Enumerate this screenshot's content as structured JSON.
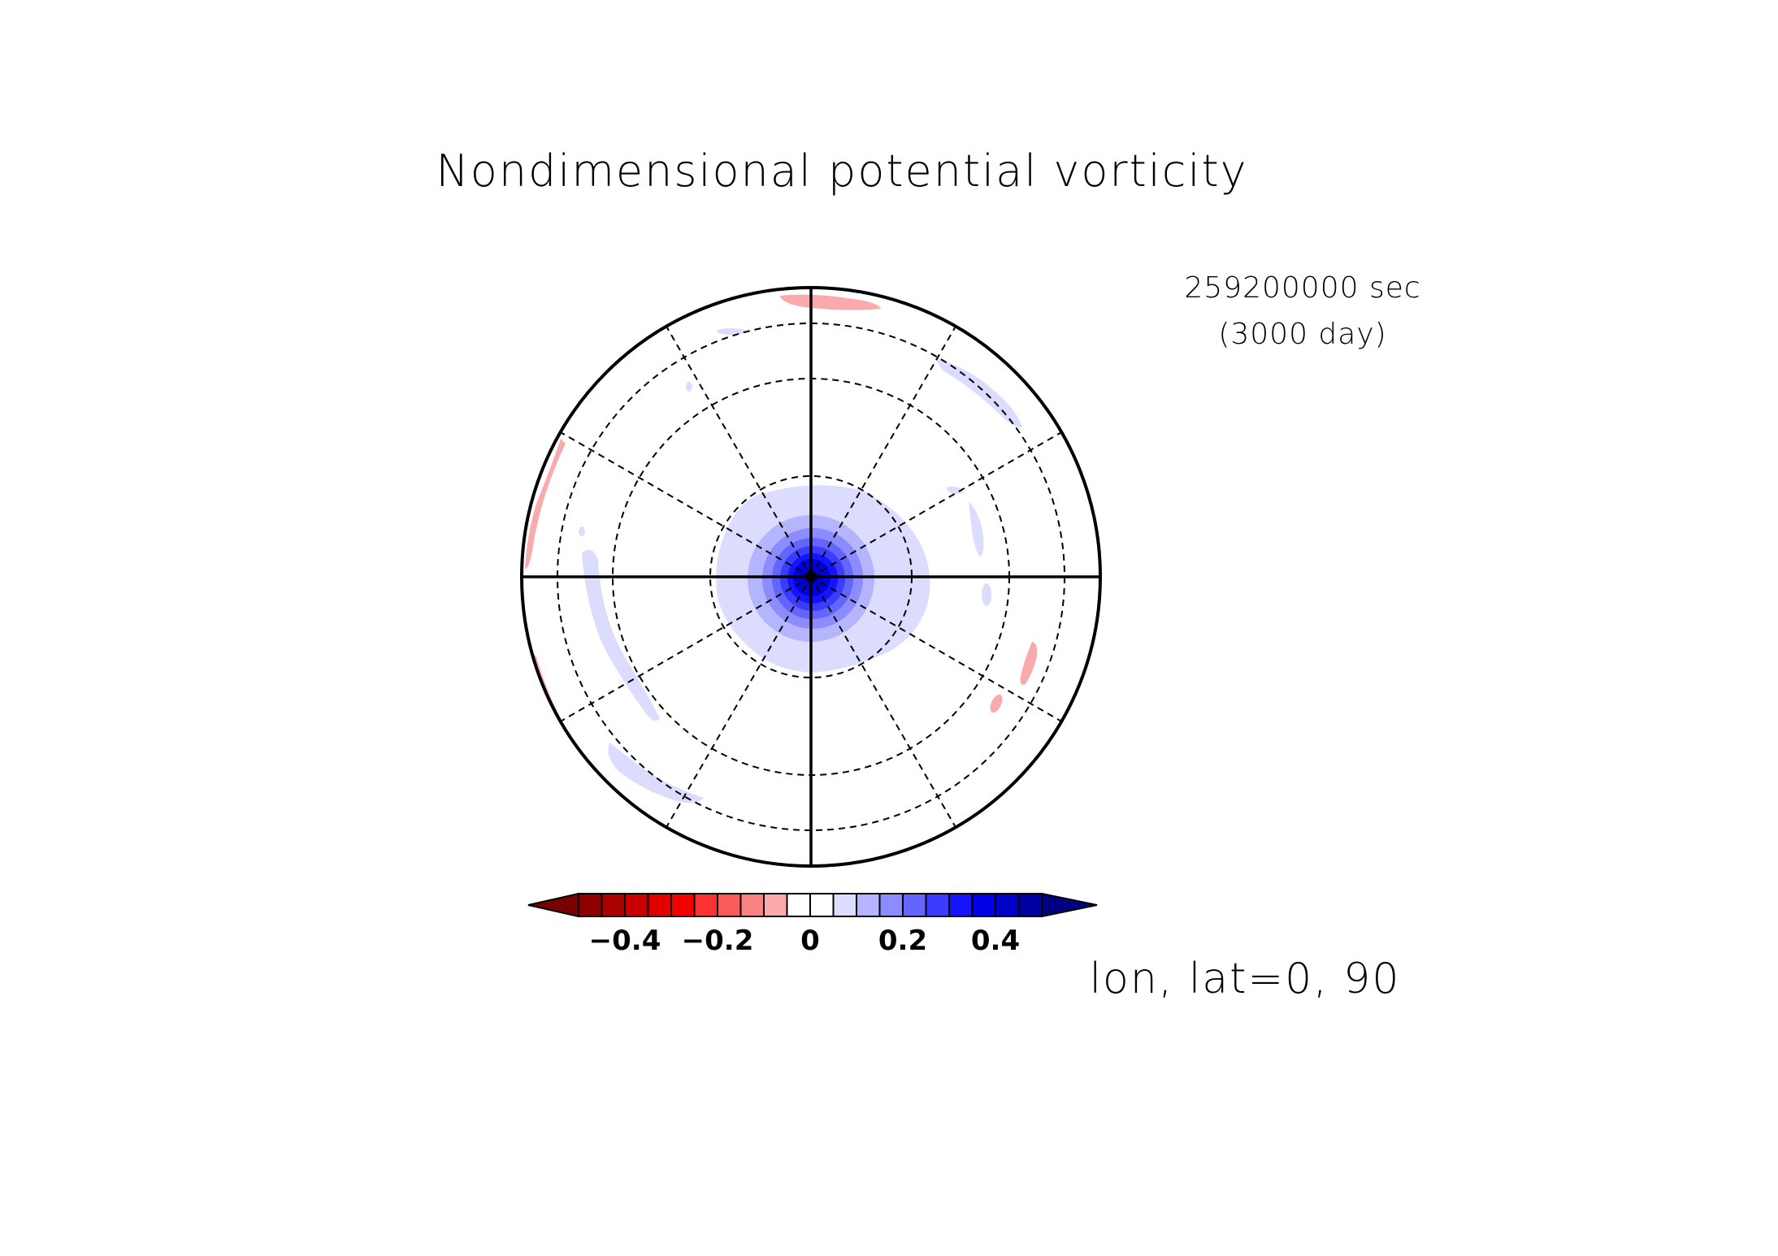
{
  "chart_data": {
    "type": "heatmap",
    "projection": "polar stereographic",
    "title": "Nondimensional potential vorticity",
    "time_label": "259200000 sec",
    "day_label": "(3000 day)",
    "projection_label": "lon, lat=0, 90",
    "colorbar": {
      "levels": [
        -0.5,
        -0.45,
        -0.4,
        -0.35,
        -0.3,
        -0.25,
        -0.2,
        -0.15,
        -0.1,
        -0.05,
        0,
        0.05,
        0.1,
        0.15,
        0.2,
        0.25,
        0.3,
        0.35,
        0.4,
        0.45,
        0.5
      ],
      "colors": [
        "#780000",
        "#8c0000",
        "#aa0000",
        "#c80000",
        "#e10000",
        "#f50000",
        "#fa3232",
        "#fa5a5a",
        "#fa8282",
        "#faaaaa",
        "#ffffff",
        "#ffffff",
        "#dcdcff",
        "#b4b4ff",
        "#8c8cff",
        "#6464ff",
        "#3c3cff",
        "#1414ff",
        "#0000e6",
        "#0000c8",
        "#0000a0",
        "#000082"
      ],
      "ticks": [
        -0.4,
        -0.2,
        0,
        0.2,
        0.4
      ],
      "tick_labels": [
        "−0.4",
        "−0.2",
        "0",
        "0.2",
        "0.4"
      ],
      "extend": "both"
    },
    "grid": {
      "meridians_deg": [
        0,
        30,
        60,
        90,
        120,
        150,
        180,
        210,
        240,
        270,
        300,
        330
      ],
      "latitude_circles": "dashed",
      "grid": true
    }
  }
}
